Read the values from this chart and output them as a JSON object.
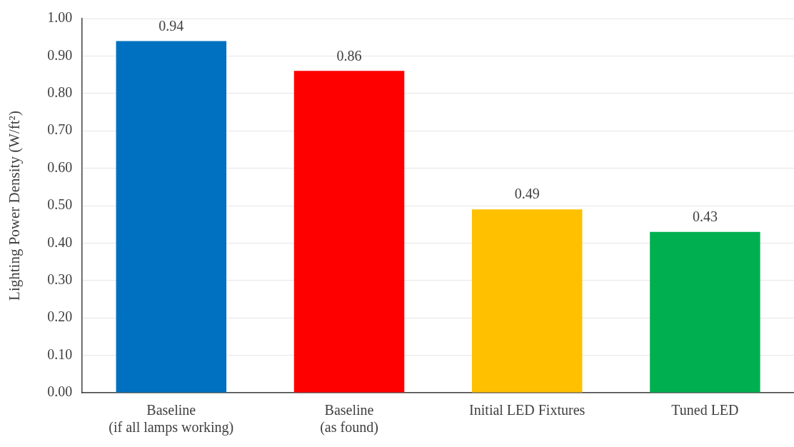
{
  "chart_data": {
    "type": "bar",
    "ylabel": "Lighting Power Density (W/ft²)",
    "categories": [
      "Baseline\n(if all lamps working)",
      "Baseline\n(as found)",
      "Initial LED Fixtures",
      "Tuned LED"
    ],
    "values": [
      0.94,
      0.86,
      0.49,
      0.43
    ],
    "colors": [
      "#0070c0",
      "#ff0000",
      "#ffc000",
      "#00b050"
    ],
    "ylim": [
      0,
      1
    ],
    "yticks": [
      {
        "value": 0,
        "label": "0.00"
      },
      {
        "value": 0.1,
        "label": "0.10"
      },
      {
        "value": 0.2,
        "label": "0.20"
      },
      {
        "value": 0.3,
        "label": "0.30"
      },
      {
        "value": 0.4,
        "label": "0.40"
      },
      {
        "value": 0.5,
        "label": "0.50"
      },
      {
        "value": 0.6,
        "label": "0.60"
      },
      {
        "value": 0.7,
        "label": "0.70"
      },
      {
        "value": 0.8,
        "label": "0.80"
      },
      {
        "value": 0.9,
        "label": "0.90"
      },
      {
        "value": 1,
        "label": "1.00"
      }
    ],
    "grid": "y",
    "legend": false,
    "data_labels": true
  }
}
